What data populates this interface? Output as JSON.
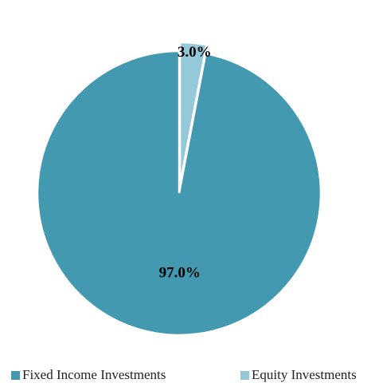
{
  "chart_data": {
    "type": "pie",
    "title": "",
    "slices": [
      {
        "name": "Fixed Income Investments",
        "value": 97.0,
        "label": "97.0%",
        "color": "#4299b0"
      },
      {
        "name": "Equity Investments",
        "value": 3.0,
        "label": "3.0%",
        "color": "#93c9d8"
      }
    ],
    "start_angle_deg": 0,
    "direction": "counterclockwise",
    "exploded_slice": "Equity Investments",
    "legend_position": "bottom"
  },
  "legend": {
    "items": [
      {
        "label": "Fixed Income Investments",
        "color": "#4299b0"
      },
      {
        "label": "Equity Investments",
        "color": "#93c9d8"
      }
    ]
  }
}
